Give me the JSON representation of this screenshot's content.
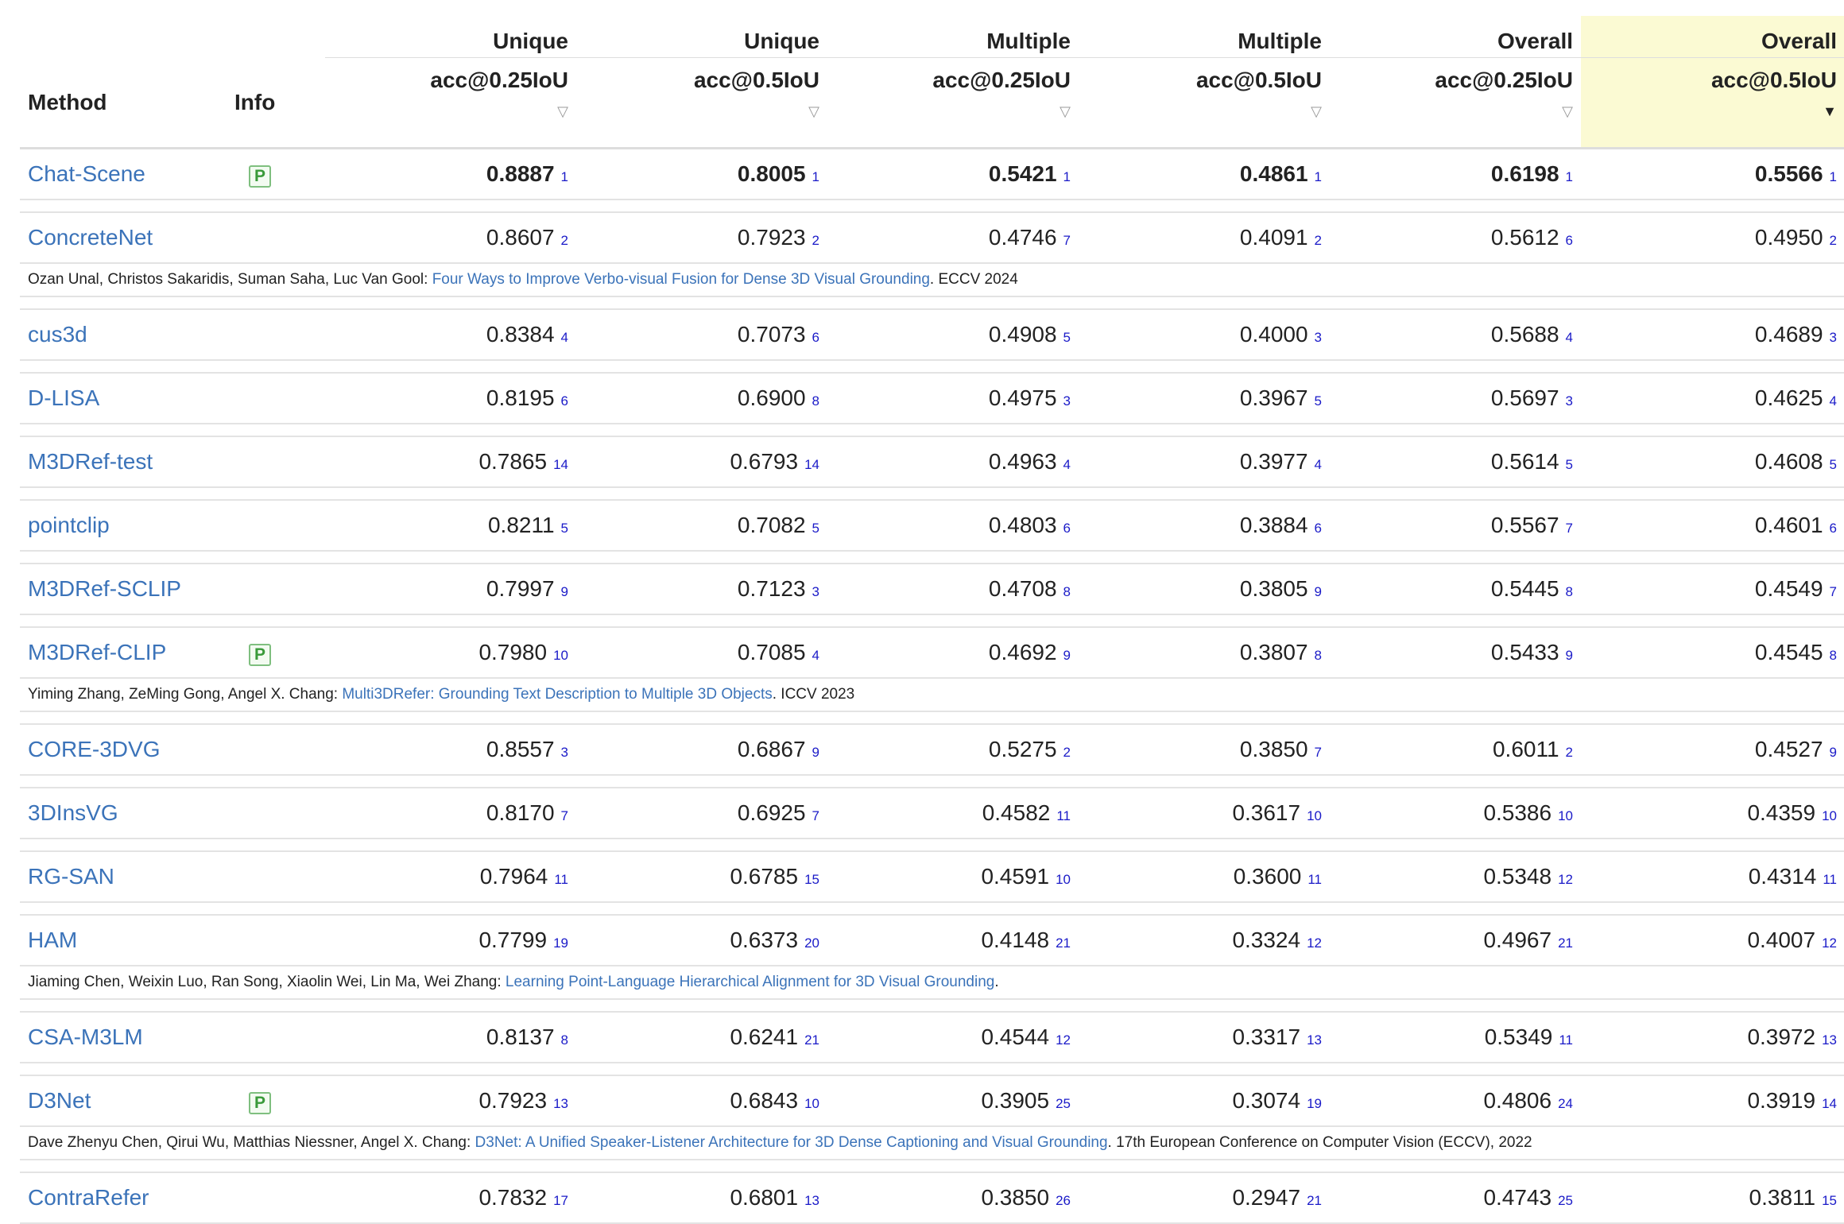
{
  "header": {
    "method": "Method",
    "info": "Info",
    "groups": [
      "Unique",
      "Unique",
      "Multiple",
      "Multiple",
      "Overall",
      "Overall"
    ],
    "metrics": [
      "acc@0.25IoU",
      "acc@0.5IoU",
      "acc@0.25IoU",
      "acc@0.5IoU",
      "acc@0.25IoU",
      "acc@0.5IoU"
    ],
    "sort_inactive": "▽",
    "sort_active": "▼"
  },
  "badge_label": "P",
  "rows": [
    {
      "name": "Chat-Scene",
      "badge": true,
      "bold": true,
      "cells": [
        [
          "0.8887",
          "1"
        ],
        [
          "0.8005",
          "1"
        ],
        [
          "0.5421",
          "1"
        ],
        [
          "0.4861",
          "1"
        ],
        [
          "0.6198",
          "1"
        ],
        [
          "0.5566",
          "1"
        ]
      ]
    },
    {
      "name": "ConcreteNet",
      "badge": false,
      "bold": false,
      "cells": [
        [
          "0.8607",
          "2"
        ],
        [
          "0.7923",
          "2"
        ],
        [
          "0.4746",
          "7"
        ],
        [
          "0.4091",
          "2"
        ],
        [
          "0.5612",
          "6"
        ],
        [
          "0.4950",
          "2"
        ]
      ],
      "cite": {
        "authors": "Ozan Unal, Christos Sakaridis, Suman Saha, Luc Van Gool: ",
        "title": "Four Ways to Improve Verbo-visual Fusion for Dense 3D Visual Grounding",
        "venue": ". ECCV 2024"
      }
    },
    {
      "name": "cus3d",
      "badge": false,
      "bold": false,
      "cells": [
        [
          "0.8384",
          "4"
        ],
        [
          "0.7073",
          "6"
        ],
        [
          "0.4908",
          "5"
        ],
        [
          "0.4000",
          "3"
        ],
        [
          "0.5688",
          "4"
        ],
        [
          "0.4689",
          "3"
        ]
      ]
    },
    {
      "name": "D-LISA",
      "badge": false,
      "bold": false,
      "cells": [
        [
          "0.8195",
          "6"
        ],
        [
          "0.6900",
          "8"
        ],
        [
          "0.4975",
          "3"
        ],
        [
          "0.3967",
          "5"
        ],
        [
          "0.5697",
          "3"
        ],
        [
          "0.4625",
          "4"
        ]
      ]
    },
    {
      "name": "M3DRef-test",
      "badge": false,
      "bold": false,
      "cells": [
        [
          "0.7865",
          "14"
        ],
        [
          "0.6793",
          "14"
        ],
        [
          "0.4963",
          "4"
        ],
        [
          "0.3977",
          "4"
        ],
        [
          "0.5614",
          "5"
        ],
        [
          "0.4608",
          "5"
        ]
      ]
    },
    {
      "name": "pointclip",
      "badge": false,
      "bold": false,
      "cells": [
        [
          "0.8211",
          "5"
        ],
        [
          "0.7082",
          "5"
        ],
        [
          "0.4803",
          "6"
        ],
        [
          "0.3884",
          "6"
        ],
        [
          "0.5567",
          "7"
        ],
        [
          "0.4601",
          "6"
        ]
      ]
    },
    {
      "name": "M3DRef-SCLIP",
      "badge": false,
      "bold": false,
      "cells": [
        [
          "0.7997",
          "9"
        ],
        [
          "0.7123",
          "3"
        ],
        [
          "0.4708",
          "8"
        ],
        [
          "0.3805",
          "9"
        ],
        [
          "0.5445",
          "8"
        ],
        [
          "0.4549",
          "7"
        ]
      ]
    },
    {
      "name": "M3DRef-CLIP",
      "badge": true,
      "bold": false,
      "cells": [
        [
          "0.7980",
          "10"
        ],
        [
          "0.7085",
          "4"
        ],
        [
          "0.4692",
          "9"
        ],
        [
          "0.3807",
          "8"
        ],
        [
          "0.5433",
          "9"
        ],
        [
          "0.4545",
          "8"
        ]
      ],
      "cite": {
        "authors": "Yiming Zhang, ZeMing Gong, Angel X. Chang: ",
        "title": "Multi3DRefer: Grounding Text Description to Multiple 3D Objects",
        "venue": ". ICCV 2023"
      }
    },
    {
      "name": "CORE-3DVG",
      "badge": false,
      "bold": false,
      "cells": [
        [
          "0.8557",
          "3"
        ],
        [
          "0.6867",
          "9"
        ],
        [
          "0.5275",
          "2"
        ],
        [
          "0.3850",
          "7"
        ],
        [
          "0.6011",
          "2"
        ],
        [
          "0.4527",
          "9"
        ]
      ]
    },
    {
      "name": "3DInsVG",
      "badge": false,
      "bold": false,
      "cells": [
        [
          "0.8170",
          "7"
        ],
        [
          "0.6925",
          "7"
        ],
        [
          "0.4582",
          "11"
        ],
        [
          "0.3617",
          "10"
        ],
        [
          "0.5386",
          "10"
        ],
        [
          "0.4359",
          "10"
        ]
      ]
    },
    {
      "name": "RG-SAN",
      "badge": false,
      "bold": false,
      "cells": [
        [
          "0.7964",
          "11"
        ],
        [
          "0.6785",
          "15"
        ],
        [
          "0.4591",
          "10"
        ],
        [
          "0.3600",
          "11"
        ],
        [
          "0.5348",
          "12"
        ],
        [
          "0.4314",
          "11"
        ]
      ]
    },
    {
      "name": "HAM",
      "badge": false,
      "bold": false,
      "cells": [
        [
          "0.7799",
          "19"
        ],
        [
          "0.6373",
          "20"
        ],
        [
          "0.4148",
          "21"
        ],
        [
          "0.3324",
          "12"
        ],
        [
          "0.4967",
          "21"
        ],
        [
          "0.4007",
          "12"
        ]
      ],
      "cite": {
        "authors": "Jiaming Chen, Weixin Luo, Ran Song, Xiaolin Wei, Lin Ma, Wei Zhang: ",
        "title": "Learning Point-Language Hierarchical Alignment for 3D Visual Grounding",
        "venue": "."
      }
    },
    {
      "name": "CSA-M3LM",
      "badge": false,
      "bold": false,
      "cells": [
        [
          "0.8137",
          "8"
        ],
        [
          "0.6241",
          "21"
        ],
        [
          "0.4544",
          "12"
        ],
        [
          "0.3317",
          "13"
        ],
        [
          "0.5349",
          "11"
        ],
        [
          "0.3972",
          "13"
        ]
      ]
    },
    {
      "name": "D3Net",
      "badge": true,
      "bold": false,
      "cells": [
        [
          "0.7923",
          "13"
        ],
        [
          "0.6843",
          "10"
        ],
        [
          "0.3905",
          "25"
        ],
        [
          "0.3074",
          "19"
        ],
        [
          "0.4806",
          "24"
        ],
        [
          "0.3919",
          "14"
        ]
      ],
      "cite": {
        "authors": "Dave Zhenyu Chen, Qirui Wu, Matthias Niessner, Angel X. Chang: ",
        "title": "D3Net: A Unified Speaker-Listener Architecture for 3D Dense Captioning and Visual Grounding",
        "venue": ". 17th European Conference on Computer Vision (ECCV), 2022"
      }
    },
    {
      "name": "ContraRefer",
      "badge": false,
      "bold": false,
      "cells": [
        [
          "0.7832",
          "17"
        ],
        [
          "0.6801",
          "13"
        ],
        [
          "0.3850",
          "26"
        ],
        [
          "0.2947",
          "21"
        ],
        [
          "0.4743",
          "25"
        ],
        [
          "0.3811",
          "15"
        ]
      ]
    }
  ]
}
